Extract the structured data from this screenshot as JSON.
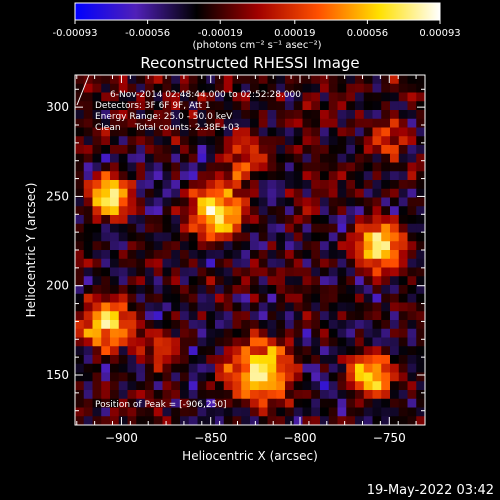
{
  "chart_data": {
    "type": "heatmap",
    "title": "Reconstructed RHESSI Image",
    "colorbar": {
      "ticks": [
        "-0.00093",
        "-0.00056",
        "-0.00019",
        "0.00019",
        "0.00056",
        "0.00093"
      ],
      "range": [
        -0.00093,
        0.00093
      ],
      "unit_label": "(photons cm⁻² s⁻¹ asec⁻²)",
      "colors": [
        "#0000ff",
        "#5020b8",
        "#000000",
        "#a00000",
        "#ff5000",
        "#ffe000",
        "#ffffff"
      ]
    },
    "xlabel": "Heliocentric X (arcsec)",
    "ylabel": "Heliocentric Y (arcsec)",
    "xlim": [
      -926,
      -730
    ],
    "ylim": [
      122,
      318
    ],
    "xticks": [
      -900,
      -850,
      -800,
      -750
    ],
    "yticks": [
      150,
      200,
      250,
      300
    ],
    "annotations": [
      "6-Nov-2014 02:48:44.000 to 02:52:28.000",
      "Detectors: 3F 6F 9F, Att 1",
      "Energy Range: 25.0 - 50.0 keV",
      "Clean     Total counts: 2.38E+03"
    ],
    "peak_label": "Position of Peak = [-906,250]",
    "grid_cells": [
      40,
      40
    ],
    "sources": [
      {
        "x": -906,
        "y": 250,
        "amp": 1.0,
        "sigma": 9
      },
      {
        "x": -908,
        "y": 178,
        "amp": 0.85,
        "sigma": 11
      },
      {
        "x": -846,
        "y": 242,
        "amp": 0.9,
        "sigma": 12
      },
      {
        "x": -832,
        "y": 270,
        "amp": 0.55,
        "sigma": 10
      },
      {
        "x": -823,
        "y": 152,
        "amp": 0.85,
        "sigma": 14
      },
      {
        "x": -755,
        "y": 222,
        "amp": 0.95,
        "sigma": 11
      },
      {
        "x": -760,
        "y": 150,
        "amp": 0.8,
        "sigma": 10
      },
      {
        "x": -752,
        "y": 282,
        "amp": 0.45,
        "sigma": 8
      },
      {
        "x": -878,
        "y": 165,
        "amp": 0.5,
        "sigma": 9
      }
    ]
  },
  "footer": {
    "timestamp": "19-May-2022 03:42"
  }
}
